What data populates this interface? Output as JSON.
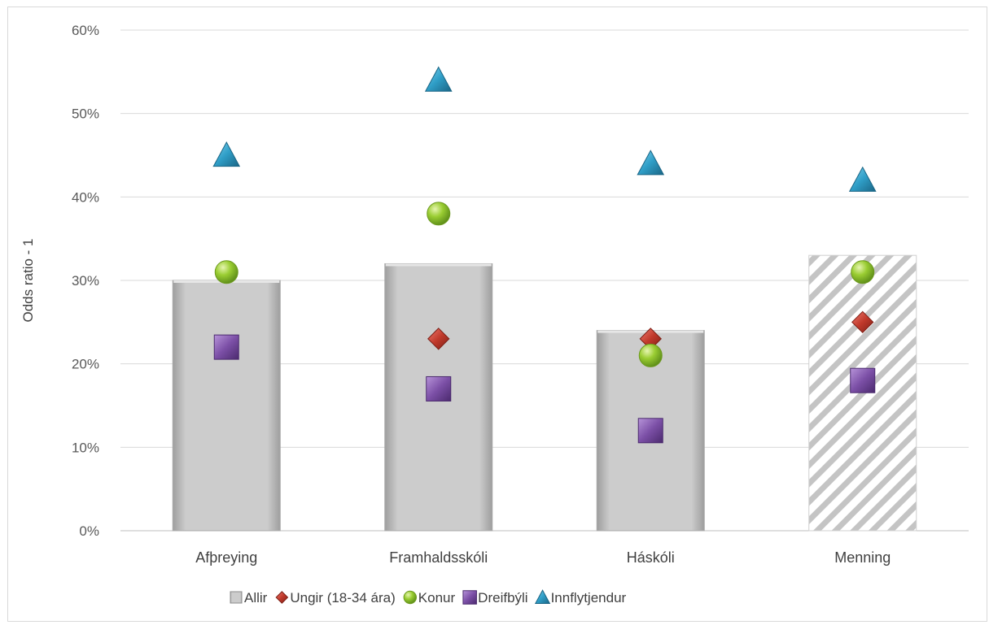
{
  "chart_data": {
    "type": "bar",
    "ylabel": "Odds ratio - 1",
    "xlabel": "",
    "ylim": [
      0,
      60
    ],
    "yticks": [
      "0%",
      "10%",
      "20%",
      "30%",
      "40%",
      "50%",
      "60%"
    ],
    "categories": [
      "Afþreying",
      "Framhaldsskóli",
      "Háskóli",
      "Menning"
    ],
    "grid": true,
    "legend_position": "bottom",
    "series": [
      {
        "name": "Allir",
        "kind": "bar",
        "values": [
          30,
          32,
          24,
          33
        ],
        "color": "#c8c8c8",
        "hatched": [
          false,
          false,
          false,
          true
        ]
      },
      {
        "name": "Ungir (18-34 ára)",
        "kind": "marker",
        "marker": "diamond",
        "values": [
          null,
          23,
          23,
          25
        ],
        "color": "#c0392b"
      },
      {
        "name": "Konur",
        "kind": "marker",
        "marker": "circle",
        "values": [
          31,
          38,
          21,
          31
        ],
        "color": "#8cbf2f"
      },
      {
        "name": "Dreifbýli",
        "kind": "marker",
        "marker": "square",
        "values": [
          22,
          17,
          12,
          18
        ],
        "color": "#7b4fa6"
      },
      {
        "name": "Innflytjendur",
        "kind": "marker",
        "marker": "triangle",
        "values": [
          45,
          54,
          44,
          42
        ],
        "color": "#2f9ec7"
      }
    ]
  }
}
